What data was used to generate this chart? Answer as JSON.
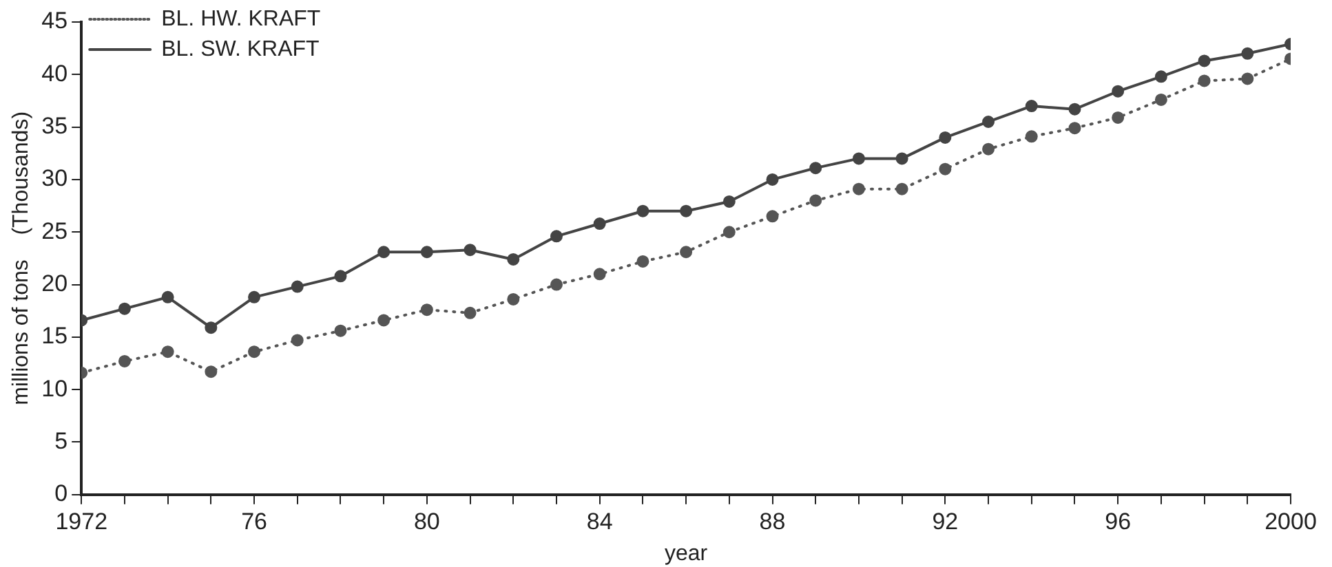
{
  "chart_data": {
    "type": "line",
    "xlabel": "year",
    "ylabel": "millions of tons    (Thousands)",
    "x": [
      1972,
      1973,
      1974,
      1975,
      1976,
      1977,
      1978,
      1979,
      1980,
      1981,
      1982,
      1983,
      1984,
      1985,
      1986,
      1987,
      1988,
      1989,
      1990,
      1991,
      1992,
      1993,
      1994,
      1995,
      1996,
      1997,
      1998,
      1999,
      2000
    ],
    "series": [
      {
        "name": "BL. HW. KRAFT",
        "color": "#555555",
        "line_style": "dotted",
        "values": [
          11.6,
          12.7,
          13.6,
          11.7,
          13.6,
          14.7,
          15.6,
          16.6,
          17.6,
          17.3,
          18.6,
          20.0,
          21.0,
          22.2,
          23.1,
          25.0,
          26.5,
          28.0,
          29.1,
          29.1,
          31.0,
          32.9,
          34.1,
          34.9,
          35.9,
          37.6,
          39.4,
          39.6,
          41.5
        ]
      },
      {
        "name": "BL. SW. KRAFT",
        "color": "#444444",
        "line_style": "solid",
        "values": [
          16.6,
          17.7,
          18.8,
          15.9,
          18.8,
          19.8,
          20.8,
          23.1,
          23.1,
          23.3,
          22.4,
          24.6,
          25.8,
          27.0,
          27.0,
          27.9,
          30.0,
          31.1,
          32.0,
          32.0,
          34.0,
          35.5,
          37.0,
          36.7,
          38.4,
          39.8,
          41.3,
          42.0,
          42.9
        ]
      }
    ],
    "xlim": [
      1972,
      2000
    ],
    "xticks": [
      {
        "value": 1972,
        "label": "1972"
      },
      {
        "value": 1973,
        "label": null
      },
      {
        "value": 1974,
        "label": null
      },
      {
        "value": 1975,
        "label": null
      },
      {
        "value": 1976,
        "label": "76"
      },
      {
        "value": 1977,
        "label": null
      },
      {
        "value": 1978,
        "label": null
      },
      {
        "value": 1979,
        "label": null
      },
      {
        "value": 1980,
        "label": "80"
      },
      {
        "value": 1981,
        "label": null
      },
      {
        "value": 1982,
        "label": null
      },
      {
        "value": 1983,
        "label": null
      },
      {
        "value": 1984,
        "label": "84"
      },
      {
        "value": 1985,
        "label": null
      },
      {
        "value": 1986,
        "label": null
      },
      {
        "value": 1987,
        "label": null
      },
      {
        "value": 1988,
        "label": "88"
      },
      {
        "value": 1989,
        "label": null
      },
      {
        "value": 1990,
        "label": null
      },
      {
        "value": 1991,
        "label": null
      },
      {
        "value": 1992,
        "label": "92"
      },
      {
        "value": 1993,
        "label": null
      },
      {
        "value": 1994,
        "label": null
      },
      {
        "value": 1995,
        "label": null
      },
      {
        "value": 1996,
        "label": "96"
      },
      {
        "value": 1997,
        "label": null
      },
      {
        "value": 1998,
        "label": null
      },
      {
        "value": 1999,
        "label": null
      },
      {
        "value": 2000,
        "label": "2000"
      }
    ],
    "ylim": [
      0,
      45
    ],
    "yticks": [
      0,
      5,
      10,
      15,
      20,
      25,
      30,
      35,
      40,
      45
    ],
    "grid": false,
    "legend": "top left",
    "marker": "circle"
  }
}
